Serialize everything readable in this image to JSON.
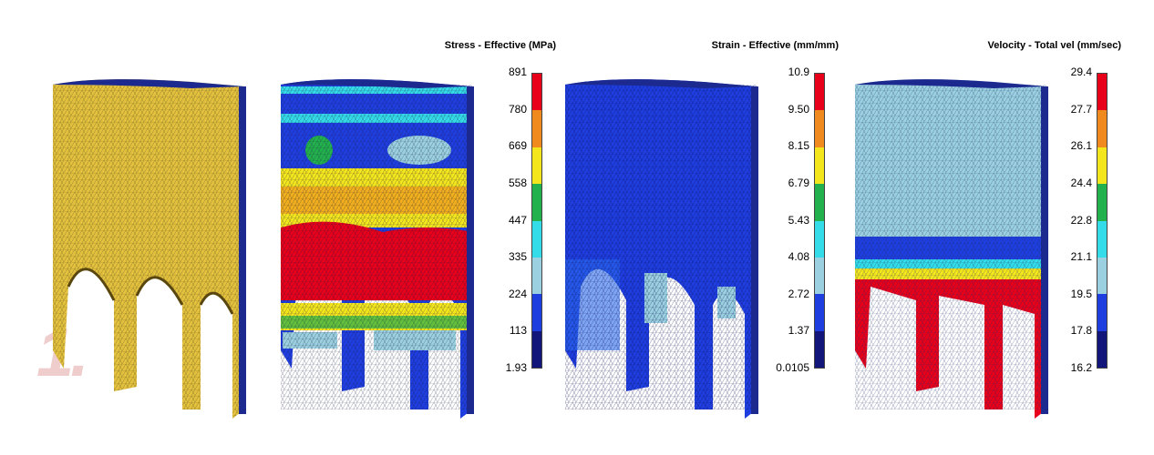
{
  "watermark": "1.",
  "panels": [
    {
      "title": "",
      "colors": []
    },
    {
      "title": "Stress - Effective (MPa)",
      "ticks": [
        "891",
        "780",
        "669",
        "558",
        "447",
        "335",
        "224",
        "113",
        "1.93"
      ],
      "colors": [
        "#e8001b",
        "#f08a1e",
        "#f4e61c",
        "#22b14c",
        "#33dce8",
        "#9ad0e0",
        "#1f3ee0",
        "#12157a"
      ]
    },
    {
      "title": "Strain - Effective (mm/mm)",
      "ticks": [
        "10.9",
        "9.50",
        "8.15",
        "6.79",
        "5.43",
        "4.08",
        "2.72",
        "1.37",
        "0.0105"
      ],
      "colors": [
        "#e8001b",
        "#f08a1e",
        "#f4e61c",
        "#22b14c",
        "#33dce8",
        "#9ad0e0",
        "#1f3ee0",
        "#12157a"
      ]
    },
    {
      "title": "Velocity - Total vel (mm/sec)",
      "ticks": [
        "29.4",
        "27.7",
        "26.1",
        "24.4",
        "22.8",
        "21.1",
        "19.5",
        "17.8",
        "16.2"
      ],
      "colors": [
        "#e8001b",
        "#f08a1e",
        "#f4e61c",
        "#22b14c",
        "#33dce8",
        "#9ad0e0",
        "#1f3ee0",
        "#12157a"
      ]
    }
  ]
}
